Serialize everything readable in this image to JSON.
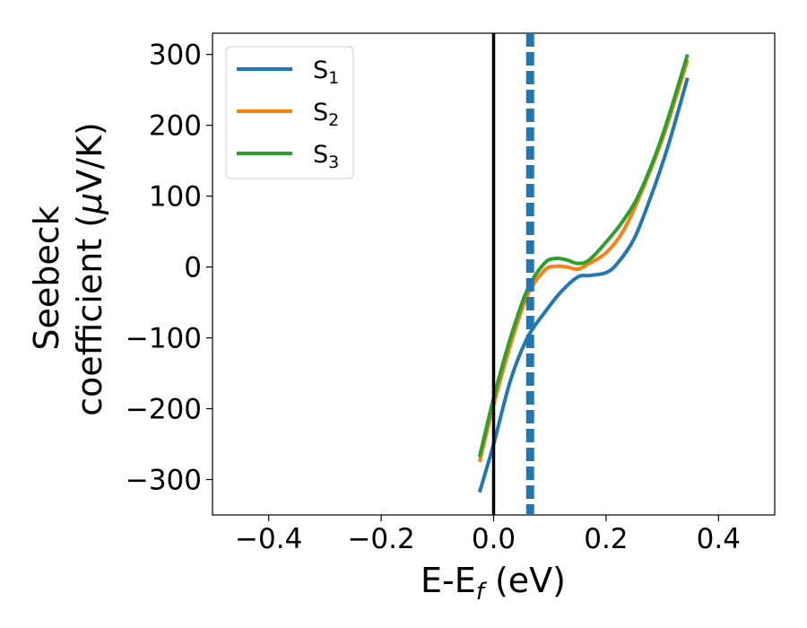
{
  "chart_data": {
    "type": "line",
    "xlabel": {
      "main": "E-E",
      "sub": "f",
      "tail": " (eV)"
    },
    "ylabel": {
      "line1": "Seebeck",
      "line2_pre": "coefficient  (",
      "line2_mu": "μ",
      "line2_post": "V/K)"
    },
    "xlim": [
      -0.5,
      0.5
    ],
    "ylim": [
      -350,
      330
    ],
    "x_ticks": [
      -0.4,
      -0.2,
      0.0,
      0.2,
      0.4
    ],
    "x_tick_labels": [
      "−0.4",
      "−0.2",
      "0.0",
      "0.2",
      "0.4"
    ],
    "y_ticks": [
      -300,
      -200,
      -100,
      0,
      100,
      200,
      300
    ],
    "y_tick_labels": [
      "−300",
      "−200",
      "−100",
      "0",
      "100",
      "200",
      "300"
    ],
    "grid": false,
    "legend_position": "top-left",
    "reference_lines": [
      {
        "x": 0.0,
        "style": "solid",
        "color": "#000000"
      },
      {
        "x": 0.065,
        "style": "dashed",
        "color": "#1f77b4"
      }
    ],
    "series": [
      {
        "name": "S",
        "sub": "1",
        "color": "#1f77b4",
        "x": [
          -0.025,
          0.0,
          0.03,
          0.06,
          0.09,
          0.12,
          0.15,
          0.17,
          0.2,
          0.22,
          0.25,
          0.28,
          0.31,
          0.345
        ],
        "y": [
          -318,
          -250,
          -160,
          -100,
          -65,
          -35,
          -14,
          -12,
          -8,
          5,
          40,
          100,
          170,
          267
        ]
      },
      {
        "name": "S",
        "sub": "2",
        "color": "#ff7f0e",
        "x": [
          -0.025,
          0.0,
          0.03,
          0.06,
          0.09,
          0.11,
          0.13,
          0.15,
          0.17,
          0.2,
          0.23,
          0.26,
          0.3,
          0.345
        ],
        "y": [
          -275,
          -195,
          -110,
          -40,
          -5,
          1,
          0,
          -3,
          5,
          20,
          50,
          100,
          180,
          292
        ]
      },
      {
        "name": "S",
        "sub": "3",
        "color": "#2ca02c",
        "x": [
          -0.025,
          0.0,
          0.03,
          0.06,
          0.09,
          0.11,
          0.13,
          0.15,
          0.17,
          0.2,
          0.23,
          0.26,
          0.3,
          0.345
        ],
        "y": [
          -268,
          -185,
          -100,
          -32,
          5,
          12,
          10,
          5,
          10,
          35,
          65,
          105,
          185,
          300
        ]
      }
    ]
  }
}
